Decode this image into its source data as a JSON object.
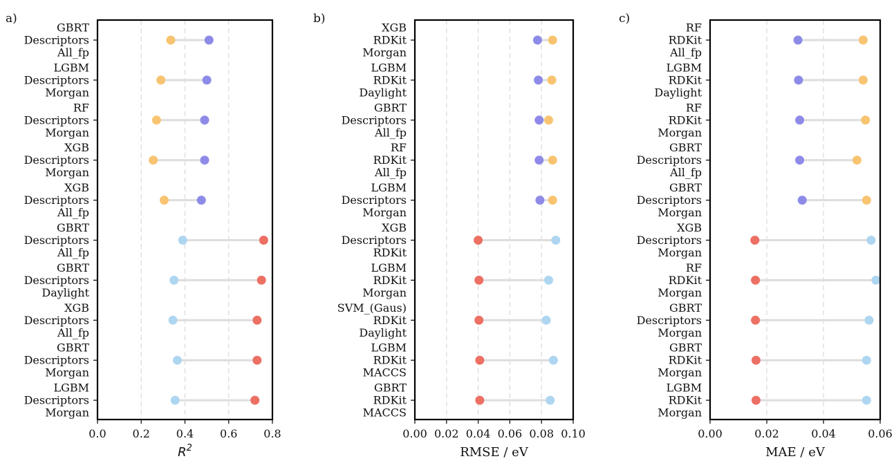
{
  "colors": {
    "r2_group1_left": "#F8C471",
    "r2_group1_right": "#8E8BE8",
    "r2_group2_left": "#AED6F1",
    "r2_group2_right": "#EC7063",
    "err_group1_left": "#8E8BE8",
    "err_group1_right": "#F8C471",
    "err_group2_left": "#EC7063",
    "err_group2_right": "#AED6F1",
    "connector": "#DDDDDD",
    "grid": "#D9D9D9"
  },
  "chart_data": [
    {
      "type": "dumbbell",
      "panel_label": "a)",
      "xlabel": "R",
      "xlabel_sup": "2",
      "xlim": [
        0.0,
        0.8
      ],
      "xticks": [
        0.0,
        0.2,
        0.4,
        0.6,
        0.8
      ],
      "xtick_labels": [
        "0.0",
        "0.2",
        "0.4",
        "0.6",
        "0.8"
      ],
      "grid": "vertical-dashed",
      "categories": [
        [
          "GBRT",
          "Descriptors",
          "All_fp"
        ],
        [
          "LGBM",
          "Descriptors",
          "Morgan"
        ],
        [
          "RF",
          "Descriptors",
          "Morgan"
        ],
        [
          "XGB",
          "Descriptors",
          "Morgan"
        ],
        [
          "XGB",
          "Descriptors",
          "All_fp"
        ],
        [
          "GBRT",
          "Descriptors",
          "All_fp"
        ],
        [
          "GBRT",
          "Descriptors",
          "Daylight"
        ],
        [
          "XGB",
          "Descriptors",
          "All_fp"
        ],
        [
          "GBRT",
          "Descriptors",
          "Morgan"
        ],
        [
          "LGBM",
          "Descriptors",
          "Morgan"
        ]
      ],
      "left_values": [
        0.335,
        0.29,
        0.27,
        0.255,
        0.305,
        0.39,
        0.35,
        0.345,
        0.365,
        0.355
      ],
      "right_values": [
        0.51,
        0.5,
        0.49,
        0.49,
        0.475,
        0.76,
        0.75,
        0.73,
        0.73,
        0.72
      ],
      "left_colors": [
        "r2_group1_left",
        "r2_group1_left",
        "r2_group1_left",
        "r2_group1_left",
        "r2_group1_left",
        "r2_group2_left",
        "r2_group2_left",
        "r2_group2_left",
        "r2_group2_left",
        "r2_group2_left"
      ],
      "right_colors": [
        "r2_group1_right",
        "r2_group1_right",
        "r2_group1_right",
        "r2_group1_right",
        "r2_group1_right",
        "r2_group2_right",
        "r2_group2_right",
        "r2_group2_right",
        "r2_group2_right",
        "r2_group2_right"
      ]
    },
    {
      "type": "dumbbell",
      "panel_label": "b)",
      "xlabel": "RMSE / eV",
      "xlabel_sup": "",
      "xlim": [
        0.0,
        0.1
      ],
      "xticks": [
        0.0,
        0.02,
        0.04,
        0.06,
        0.08,
        0.1
      ],
      "xtick_labels": [
        "0.00",
        "0.02",
        "0.04",
        "0.06",
        "0.08",
        "0.10"
      ],
      "grid": "vertical-dashed",
      "categories": [
        [
          "XGB",
          "RDKit",
          "Morgan"
        ],
        [
          "LGBM",
          "RDKit",
          "Daylight"
        ],
        [
          "GBRT",
          "Descriptors",
          "All_fp"
        ],
        [
          "RF",
          "RDKit",
          "All_fp"
        ],
        [
          "LGBM",
          "Descriptors",
          "Morgan"
        ],
        [
          "XGB",
          "Descriptors",
          "RDKit"
        ],
        [
          "LGBM",
          "RDKit",
          "Morgan"
        ],
        [
          "SVM_(Gaus)",
          "RDKit",
          "Daylight"
        ],
        [
          "LGBM",
          "RDKit",
          "MACCS"
        ],
        [
          "GBRT",
          "RDKit",
          "MACCS"
        ]
      ],
      "left_values": [
        0.0775,
        0.078,
        0.0785,
        0.0785,
        0.079,
        0.04,
        0.0405,
        0.0405,
        0.041,
        0.041
      ],
      "right_values": [
        0.087,
        0.0865,
        0.0845,
        0.087,
        0.087,
        0.089,
        0.0845,
        0.083,
        0.0875,
        0.0855
      ],
      "left_colors": [
        "err_group1_left",
        "err_group1_left",
        "err_group1_left",
        "err_group1_left",
        "err_group1_left",
        "err_group2_left",
        "err_group2_left",
        "err_group2_left",
        "err_group2_left",
        "err_group2_left"
      ],
      "right_colors": [
        "err_group1_right",
        "err_group1_right",
        "err_group1_right",
        "err_group1_right",
        "err_group1_right",
        "err_group2_right",
        "err_group2_right",
        "err_group2_right",
        "err_group2_right",
        "err_group2_right"
      ]
    },
    {
      "type": "dumbbell",
      "panel_label": "c)",
      "xlabel": "MAE / eV",
      "xlabel_sup": "",
      "xlim": [
        0.0,
        0.06
      ],
      "xticks": [
        0.0,
        0.02,
        0.04,
        0.06
      ],
      "xtick_labels": [
        "0.00",
        "0.02",
        "0.04",
        "0.06"
      ],
      "grid": "vertical-dashed",
      "categories": [
        [
          "RF",
          "RDKit",
          "All_fp"
        ],
        [
          "LGBM",
          "RDKit",
          "Daylight"
        ],
        [
          "RF",
          "RDKit",
          "Morgan"
        ],
        [
          "GBRT",
          "Descriptors",
          "All_fp"
        ],
        [
          "GBRT",
          "Descriptors",
          "Morgan"
        ],
        [
          "XGB",
          "Descriptors",
          "Morgan"
        ],
        [
          "RF",
          "RDKit",
          "Morgan"
        ],
        [
          "GBRT",
          "Descriptors",
          "Morgan"
        ],
        [
          "GBRT",
          "RDKit",
          "Morgan"
        ],
        [
          "LGBM",
          "RDKit",
          "Morgan"
        ]
      ],
      "left_values": [
        0.031,
        0.0312,
        0.0316,
        0.0316,
        0.0325,
        0.0158,
        0.016,
        0.016,
        0.0162,
        0.0162
      ],
      "right_values": [
        0.054,
        0.054,
        0.0548,
        0.0518,
        0.0552,
        0.0568,
        0.0585,
        0.0561,
        0.0552,
        0.0552
      ],
      "left_colors": [
        "err_group1_left",
        "err_group1_left",
        "err_group1_left",
        "err_group1_left",
        "err_group1_left",
        "err_group2_left",
        "err_group2_left",
        "err_group2_left",
        "err_group2_left",
        "err_group2_left"
      ],
      "right_colors": [
        "err_group1_right",
        "err_group1_right",
        "err_group1_right",
        "err_group1_right",
        "err_group1_right",
        "err_group2_right",
        "err_group2_right",
        "err_group2_right",
        "err_group2_right",
        "err_group2_right"
      ]
    }
  ]
}
